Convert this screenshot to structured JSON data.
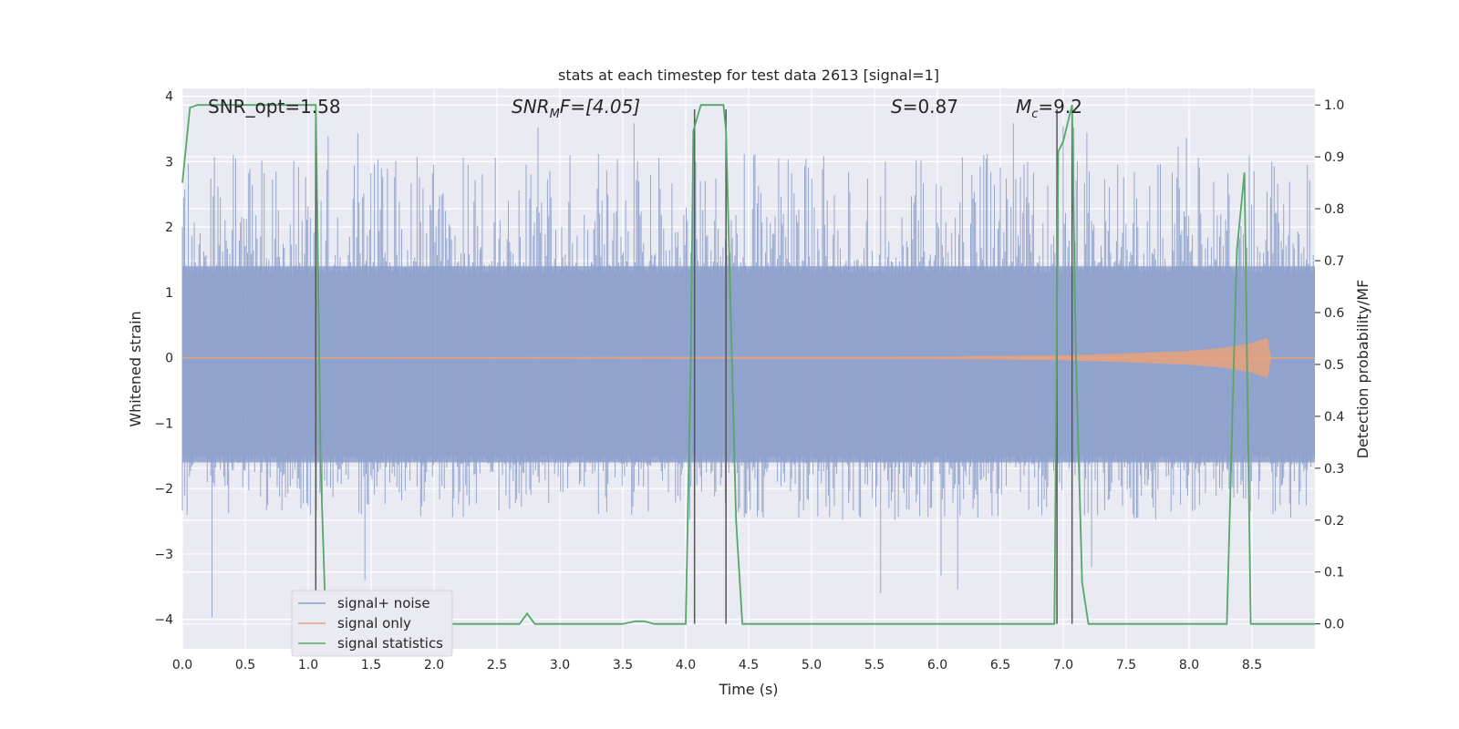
{
  "chart_data": {
    "type": "line",
    "title": "stats at each timestep for test data 2613 [signal=1]",
    "xlabel": "Time (s)",
    "ylabel_left": "Whitened strain",
    "ylabel_right": "Detection probability/MF",
    "xlim": [
      0,
      9.0
    ],
    "ylim_left": [
      -4.45,
      4.12
    ],
    "ylim_right": [
      -0.048,
      1.032
    ],
    "x_ticks": [
      0.0,
      0.5,
      1.0,
      1.5,
      2.0,
      2.5,
      3.0,
      3.5,
      4.0,
      4.5,
      5.0,
      5.5,
      6.0,
      6.5,
      7.0,
      7.5,
      8.0,
      8.5
    ],
    "x_tick_labels": [
      "0.0",
      "0.5",
      "1.0",
      "1.5",
      "2.0",
      "2.5",
      "3.0",
      "3.5",
      "4.0",
      "4.5",
      "5.0",
      "5.5",
      "6.0",
      "6.5",
      "7.0",
      "7.5",
      "8.0",
      "8.5"
    ],
    "y_left_ticks": [
      4,
      3,
      2,
      1,
      0,
      -1,
      -2,
      -3,
      -4
    ],
    "y_left_tick_labels": [
      "4",
      "3",
      "2",
      "1",
      "0",
      "−1",
      "−2",
      "−3",
      "−4"
    ],
    "y_right_ticks": [
      1.0,
      0.9,
      0.8,
      0.7,
      0.6,
      0.5,
      0.4,
      0.3,
      0.2,
      0.1,
      0.0
    ],
    "y_right_tick_labels": [
      "1.0",
      "0.9",
      "0.8",
      "0.7",
      "0.6",
      "0.5",
      "0.4",
      "0.3",
      "0.2",
      "0.1",
      "0.0"
    ],
    "grid": true,
    "legend_position": "lower-left",
    "annotations": {
      "snr_opt": "SNR_opt=1.58",
      "snr_mf_main": "SNR",
      "snr_mf_sub": "M",
      "snr_mf_tail": "F=[4.05]",
      "s_main": "S",
      "s_tail": "=0.87",
      "mc_main": "M",
      "mc_sub": "c",
      "mc_tail": "=9.2"
    },
    "series": [
      {
        "name": "signal+ noise",
        "color": "#8da0cb",
        "description_values": "dense noise band",
        "envelope": {
          "typical_min": -2.2,
          "typical_max": 2.6,
          "extreme_min": -4.0,
          "extreme_max": 3.75
        }
      },
      {
        "name": "signal only",
        "color": "#e8a27c",
        "x": [
          0.0,
          6.0,
          7.0,
          7.5,
          8.0,
          8.3,
          8.5,
          8.62,
          8.65,
          9.0
        ],
        "amplitude": [
          0.0,
          0.01,
          0.03,
          0.06,
          0.1,
          0.15,
          0.22,
          0.3,
          0.0,
          0.0
        ]
      },
      {
        "name": "signal statistics",
        "color": "#55a868",
        "x": [
          0.0,
          0.06,
          0.12,
          0.5,
          1.0,
          1.06,
          1.1,
          1.14,
          1.2,
          1.5,
          2.0,
          2.5,
          2.68,
          2.74,
          2.8,
          3.0,
          3.5,
          3.6,
          3.67,
          3.75,
          4.0,
          4.04,
          4.06,
          4.12,
          4.3,
          4.32,
          4.4,
          4.45,
          5.0,
          6.0,
          6.93,
          6.96,
          7.0,
          7.07,
          7.1,
          7.15,
          7.2,
          7.5,
          8.0,
          8.3,
          8.38,
          8.44,
          8.49,
          8.6,
          9.0
        ],
        "values": [
          0.85,
          0.995,
          1.0,
          1.0,
          1.0,
          1.0,
          0.3,
          0.0,
          0.0,
          0.0,
          0.0,
          0.0,
          0.0,
          0.02,
          0.0,
          0.0,
          0.0,
          0.005,
          0.005,
          0.0,
          0.0,
          0.5,
          0.95,
          1.0,
          1.0,
          0.95,
          0.2,
          0.0,
          0.0,
          0.0,
          0.0,
          0.91,
          0.93,
          1.0,
          0.52,
          0.08,
          0.0,
          0.0,
          0.0,
          0.0,
          0.72,
          0.87,
          0.0,
          0.0,
          0.0
        ]
      }
    ],
    "vlines": [
      {
        "x": 1.06,
        "y_top": 3.8
      },
      {
        "x": 4.07,
        "y_top": 3.8
      },
      {
        "x": 4.32,
        "y_top": 3.8
      },
      {
        "x": 6.95,
        "y_top": 3.8
      },
      {
        "x": 7.07,
        "y_top": 3.8
      }
    ],
    "legend": [
      "signal+ noise",
      "signal only",
      "signal statistics"
    ]
  },
  "colors": {
    "axes_bg": "#eaeaf2",
    "grid": "#ffffff",
    "noise": "#8da0cb",
    "signal_only": "#e8a27c",
    "statistics": "#55a868",
    "vline": "#555555",
    "text": "#262626"
  }
}
